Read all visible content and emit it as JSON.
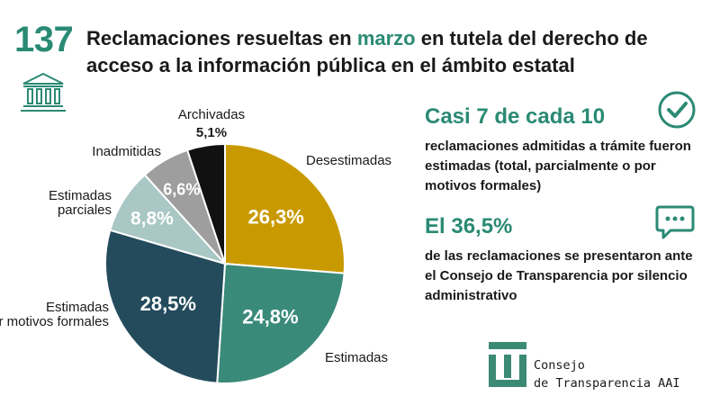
{
  "header": {
    "number": "137",
    "title_pre": "Reclamaciones resueltas en ",
    "title_highlight": "marzo",
    "title_post": " en tutela del derecho de acceso a la información pública en el ámbito estatal"
  },
  "chart_data": {
    "type": "pie",
    "slices": [
      {
        "name": "Desestimadas",
        "value": 26.3,
        "label": "26,3%",
        "color": "#c99a00"
      },
      {
        "name": "Estimadas",
        "value": 24.8,
        "label": "24,8%",
        "color": "#3a8a7a"
      },
      {
        "name": "Estimadas por motivos formales",
        "value": 28.5,
        "label": "28,5%",
        "color": "#234b5c"
      },
      {
        "name": "Estimadas parciales",
        "value": 8.8,
        "label": "8,8%",
        "color": "#a9c7c4"
      },
      {
        "name": "Inadmitidas",
        "value": 6.6,
        "label": "6,6%",
        "color": "#9e9e9e"
      },
      {
        "name": "Archivadas",
        "value": 5.1,
        "label": "5,1%",
        "color": "#111111"
      }
    ]
  },
  "stats": [
    {
      "title": "Casi 7 de cada 10",
      "text": "reclamaciones admitidas a trámite fueron estimadas (total, parcialmente o por motivos formales)",
      "icon": "check-icon"
    },
    {
      "title": "El 36,5%",
      "text": "de las reclamaciones se presentaron ante el Consejo de Transparencia por silencio administrativo",
      "icon": "chat-icon"
    }
  ],
  "logo": {
    "line1": "Consejo",
    "line2": "de Transparencia AAI"
  },
  "colors": {
    "accent": "#2a8a74"
  }
}
